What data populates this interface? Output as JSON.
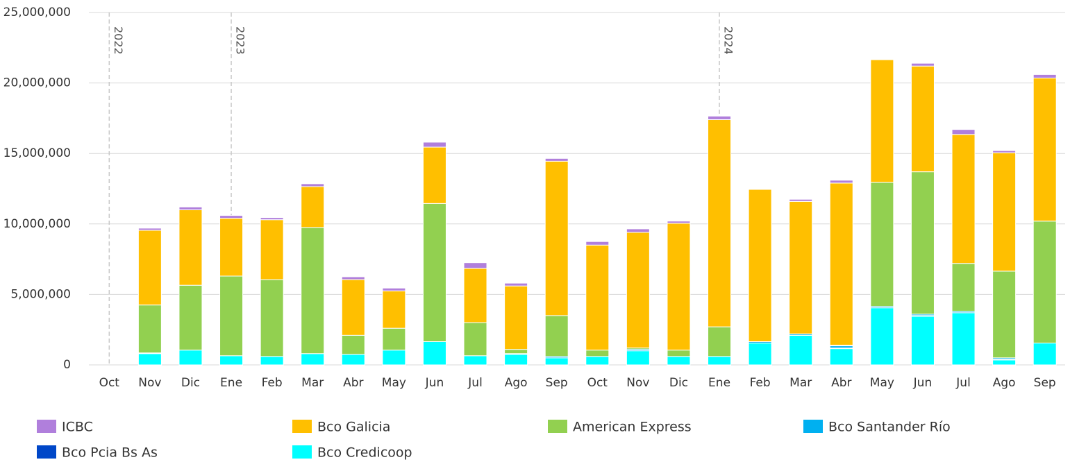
{
  "chart_data": {
    "type": "stacked_bar",
    "categories": [
      "Oct",
      "Nov",
      "Dic",
      "Ene",
      "Feb",
      "Mar",
      "Abr",
      "May",
      "Jun",
      "Jul",
      "Ago",
      "Sep",
      "Oct",
      "Nov",
      "Dic",
      "Ene",
      "Feb",
      "Mar",
      "Abr",
      "May",
      "Jun",
      "Jul",
      "Ago",
      "Sep"
    ],
    "annotations": [
      "2022",
      "2023",
      "2024"
    ],
    "series": [
      {
        "name": "ICBC",
        "color": "#b07fdc",
        "values": [
          0,
          150000,
          200000,
          200000,
          150000,
          200000,
          200000,
          200000,
          350000,
          400000,
          200000,
          200000,
          250000,
          250000,
          150000,
          250000,
          0,
          150000,
          200000,
          0,
          200000,
          350000,
          150000,
          250000
        ]
      },
      {
        "name": "Bco Galicia",
        "color": "#ffbf00",
        "values": [
          0,
          5300000,
          5350000,
          4100000,
          4250000,
          2900000,
          3950000,
          2650000,
          4000000,
          3850000,
          4500000,
          10950000,
          7450000,
          8200000,
          9000000,
          14700000,
          10800000,
          9400000,
          11500000,
          8700000,
          7500000,
          9150000,
          8400000,
          10150000
        ]
      },
      {
        "name": "American Express",
        "color": "#92d050",
        "values": [
          0,
          3400000,
          4600000,
          5650000,
          5450000,
          8950000,
          1350000,
          1550000,
          9800000,
          2350000,
          300000,
          2900000,
          450000,
          100000,
          450000,
          2100000,
          0,
          0,
          50000,
          8800000,
          10100000,
          3400000,
          6150000,
          8650000
        ]
      },
      {
        "name": "Bco Santander Río",
        "color": "#00b0f0",
        "values": [
          0,
          50000,
          0,
          0,
          0,
          0,
          0,
          0,
          0,
          0,
          50000,
          100000,
          0,
          100000,
          0,
          0,
          100000,
          100000,
          150000,
          100000,
          100000,
          100000,
          100000,
          0
        ]
      },
      {
        "name": "Bco Pcia Bs As",
        "color": "#0047c8",
        "values": [
          0,
          0,
          0,
          0,
          0,
          0,
          0,
          0,
          0,
          0,
          0,
          0,
          0,
          0,
          0,
          0,
          0,
          0,
          50000,
          0,
          50000,
          0,
          50000,
          0
        ]
      },
      {
        "name": "Bco Credicoop",
        "color": "#00ffff",
        "values": [
          0,
          800000,
          1050000,
          650000,
          600000,
          800000,
          750000,
          1050000,
          1650000,
          650000,
          750000,
          500000,
          600000,
          1000000,
          600000,
          600000,
          1550000,
          2100000,
          1150000,
          4050000,
          3450000,
          3700000,
          350000,
          1550000
        ]
      }
    ],
    "ylim": [
      0,
      25000000
    ],
    "yticks": [
      0,
      {
        "value": 5000000,
        "label": "5,000,000"
      },
      {
        "value": 10000000,
        "label": "10,000,000"
      },
      {
        "value": 15000000,
        "label": "15,000,000"
      },
      {
        "value": 20000000,
        "label": "20,000,000"
      },
      {
        "value": 25000000,
        "label": "25,000,000"
      }
    ],
    "grid": true
  }
}
